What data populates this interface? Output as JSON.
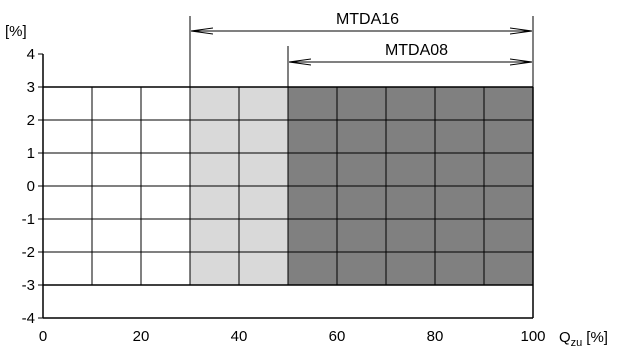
{
  "chart_data": {
    "type": "area",
    "title": "",
    "xlabel": "Q",
    "xlabel_sub": "zu",
    "xlabel_unit": "[%]",
    "ylabel": "[%]",
    "xlim": [
      0,
      100
    ],
    "ylim": [
      -4,
      4
    ],
    "x_ticks": [
      0,
      20,
      40,
      60,
      80,
      100
    ],
    "y_ticks": [
      4,
      3,
      2,
      1,
      0,
      -1,
      -2,
      -3,
      -4
    ],
    "x_grid": [
      0,
      10,
      20,
      30,
      40,
      50,
      60,
      70,
      80,
      90,
      100
    ],
    "y_grid": [
      3,
      2,
      1,
      0,
      -1,
      -2,
      -3
    ],
    "grid": true,
    "colors": {
      "MTDA16": "#d9d9d9",
      "MTDA08": "#808080",
      "grid": "#000000"
    },
    "ranges": [
      {
        "name": "MTDA16",
        "x": [
          30,
          100
        ],
        "y": [
          -3,
          3
        ]
      },
      {
        "name": "MTDA08",
        "x": [
          50,
          100
        ],
        "y": [
          -3,
          3
        ]
      }
    ]
  }
}
